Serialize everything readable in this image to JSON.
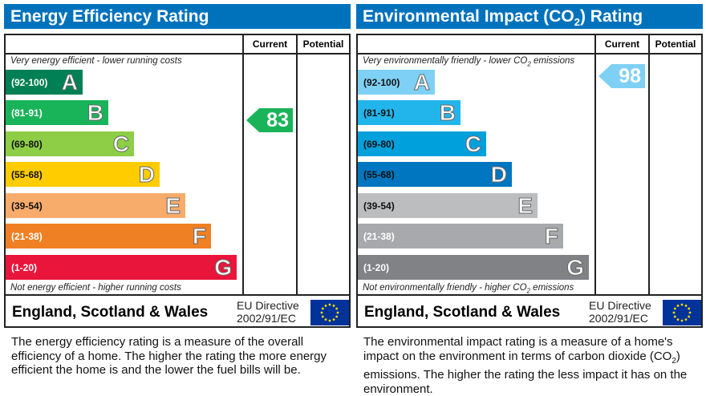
{
  "chart_data": [
    {
      "type": "bar",
      "title": "Energy Efficiency Rating",
      "columns": [
        "Current",
        "Potential"
      ],
      "top_note": "Very energy efficient - lower running costs",
      "bottom_note": "Not energy efficient - higher running costs",
      "bands": [
        {
          "range": "(92-100)",
          "letter": "A",
          "color": "#008054",
          "text": "#fff"
        },
        {
          "range": "(81-91)",
          "letter": "B",
          "color": "#19b459",
          "text": "#fff"
        },
        {
          "range": "(69-80)",
          "letter": "C",
          "color": "#8dce46",
          "text": "#111"
        },
        {
          "range": "(55-68)",
          "letter": "D",
          "color": "#ffcc00",
          "text": "#111"
        },
        {
          "range": "(39-54)",
          "letter": "E",
          "color": "#f7ac6b",
          "text": "#111"
        },
        {
          "range": "(21-38)",
          "letter": "F",
          "color": "#ef8023",
          "text": "#fff"
        },
        {
          "range": "(1-20)",
          "letter": "G",
          "color": "#e9153b",
          "text": "#fff"
        }
      ],
      "current": {
        "value": "83",
        "band": "B",
        "color": "#19b459"
      },
      "potential": null,
      "footer": "England, Scotland & Wales",
      "directive_1": "EU Directive",
      "directive_2": "2002/91/EC",
      "description": "The energy efficiency rating is a measure of the overall efficiency of a home. The higher the rating the more energy efficient the home is and the lower the fuel bills will be."
    },
    {
      "type": "bar",
      "title": "Environmental Impact (CO2) Rating",
      "columns": [
        "Current",
        "Potential"
      ],
      "top_note": "Very environmentally friendly - lower CO2 emissions",
      "bottom_note": "Not environmentally friendly - higher CO2 emissions",
      "bands": [
        {
          "range": "(92-100)",
          "letter": "A",
          "color": "#7fd0f5",
          "text": "#111"
        },
        {
          "range": "(81-91)",
          "letter": "B",
          "color": "#22b5eb",
          "text": "#111"
        },
        {
          "range": "(69-80)",
          "letter": "C",
          "color": "#00a0dc",
          "text": "#111"
        },
        {
          "range": "(55-68)",
          "letter": "D",
          "color": "#0076c0",
          "text": "#111"
        },
        {
          "range": "(39-54)",
          "letter": "E",
          "color": "#bbbdbf",
          "text": "#111"
        },
        {
          "range": "(21-38)",
          "letter": "F",
          "color": "#a7a9ac",
          "text": "#fff"
        },
        {
          "range": "(1-20)",
          "letter": "G",
          "color": "#808285",
          "text": "#fff"
        }
      ],
      "current": {
        "value": "98",
        "band": "A",
        "color": "#7fd0f5"
      },
      "potential": null,
      "footer": "England, Scotland & Wales",
      "directive_1": "EU Directive",
      "directive_2": "2002/91/EC",
      "description": "The environmental impact rating is a measure of a home's impact on the environment in terms of carbon dioxide (CO2) emissions. The higher the rating the less impact it has on the environment."
    }
  ]
}
